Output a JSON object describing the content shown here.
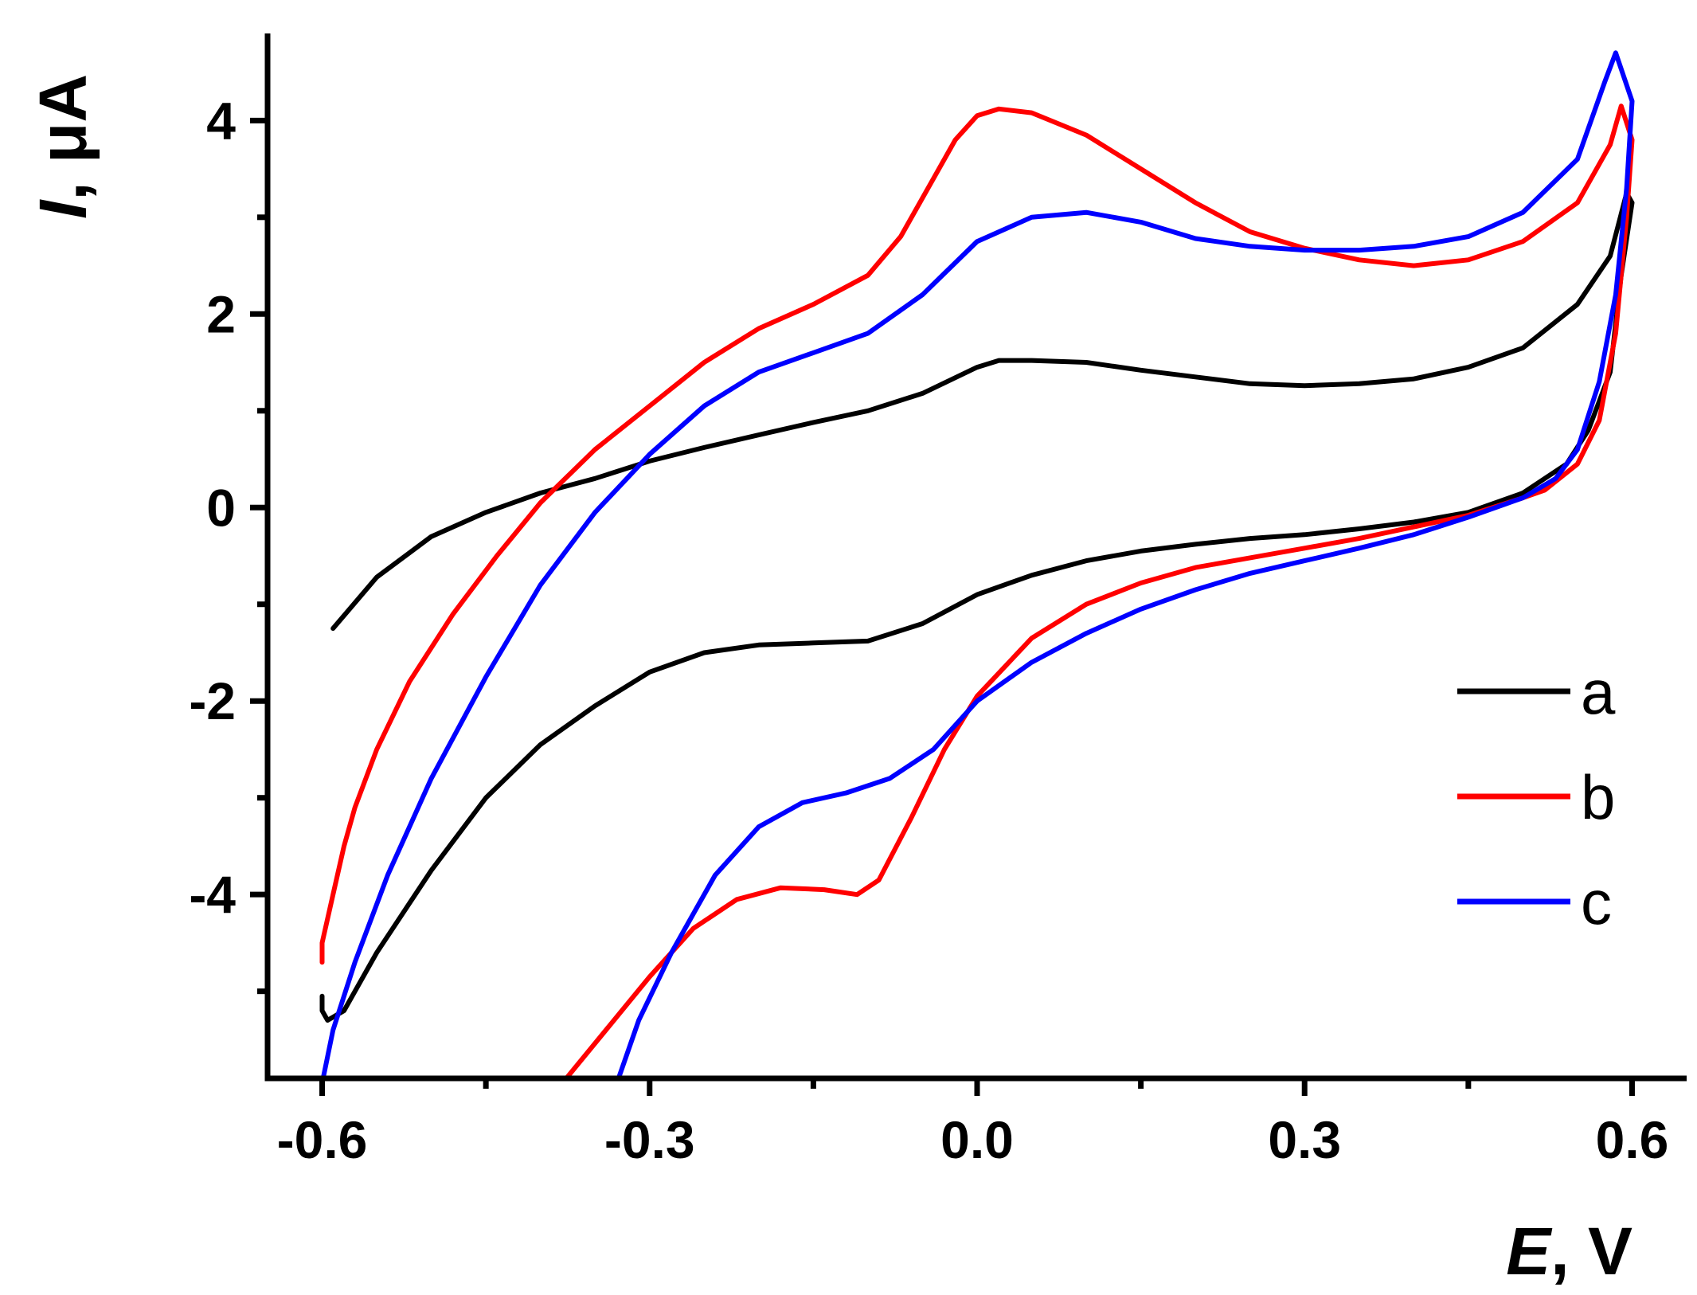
{
  "chart_data": {
    "type": "line",
    "title": "",
    "xlabel": {
      "symbol": "E",
      "unit": ", V"
    },
    "ylabel": {
      "symbol": "I",
      "unit": ", μA"
    },
    "xlim": [
      -0.65,
      0.65
    ],
    "ylim": [
      -5.9,
      4.9
    ],
    "x_ticks": [
      -0.6,
      -0.3,
      0.0,
      0.3,
      0.6
    ],
    "x_tick_labels": [
      "-0.6",
      "-0.3",
      "0.0",
      "0.3",
      "0.6"
    ],
    "x_minor_ticks": [
      -0.45,
      -0.15,
      0.15,
      0.45
    ],
    "y_ticks": [
      -4,
      -2,
      0,
      2,
      4
    ],
    "y_tick_labels": [
      "-4",
      "-2",
      "0",
      "2",
      "4"
    ],
    "y_minor_ticks": [
      -5,
      -3,
      -1,
      1,
      3
    ],
    "grid": false,
    "legend_position": "bottom-right",
    "series": [
      {
        "name": "a",
        "color": "#000000",
        "points": [
          [
            -0.59,
            -1.25
          ],
          [
            -0.55,
            -0.72
          ],
          [
            -0.5,
            -0.3
          ],
          [
            -0.45,
            -0.05
          ],
          [
            -0.4,
            0.15
          ],
          [
            -0.35,
            0.3
          ],
          [
            -0.3,
            0.48
          ],
          [
            -0.25,
            0.62
          ],
          [
            -0.2,
            0.75
          ],
          [
            -0.15,
            0.88
          ],
          [
            -0.1,
            1.0
          ],
          [
            -0.05,
            1.18
          ],
          [
            0.0,
            1.45
          ],
          [
            0.02,
            1.52
          ],
          [
            0.05,
            1.52
          ],
          [
            0.1,
            1.5
          ],
          [
            0.15,
            1.42
          ],
          [
            0.2,
            1.35
          ],
          [
            0.25,
            1.28
          ],
          [
            0.3,
            1.26
          ],
          [
            0.35,
            1.28
          ],
          [
            0.4,
            1.33
          ],
          [
            0.45,
            1.45
          ],
          [
            0.5,
            1.65
          ],
          [
            0.55,
            2.1
          ],
          [
            0.58,
            2.6
          ],
          [
            0.595,
            3.25
          ],
          [
            0.6,
            3.15
          ],
          [
            0.59,
            2.4
          ],
          [
            0.58,
            1.4
          ],
          [
            0.56,
            0.8
          ],
          [
            0.54,
            0.45
          ],
          [
            0.5,
            0.15
          ],
          [
            0.45,
            -0.05
          ],
          [
            0.4,
            -0.15
          ],
          [
            0.35,
            -0.22
          ],
          [
            0.3,
            -0.28
          ],
          [
            0.25,
            -0.32
          ],
          [
            0.2,
            -0.38
          ],
          [
            0.15,
            -0.45
          ],
          [
            0.1,
            -0.55
          ],
          [
            0.05,
            -0.7
          ],
          [
            0.0,
            -0.9
          ],
          [
            -0.05,
            -1.2
          ],
          [
            -0.1,
            -1.38
          ],
          [
            -0.15,
            -1.4
          ],
          [
            -0.2,
            -1.42
          ],
          [
            -0.25,
            -1.5
          ],
          [
            -0.3,
            -1.7
          ],
          [
            -0.35,
            -2.05
          ],
          [
            -0.4,
            -2.45
          ],
          [
            -0.45,
            -3.0
          ],
          [
            -0.5,
            -3.75
          ],
          [
            -0.55,
            -4.6
          ],
          [
            -0.58,
            -5.2
          ],
          [
            -0.595,
            -5.3
          ],
          [
            -0.6,
            -5.2
          ],
          [
            -0.6,
            -5.05
          ]
        ]
      },
      {
        "name": "b",
        "color": "#ff0000",
        "points": [
          [
            -0.6,
            -4.7
          ],
          [
            -0.6,
            -4.5
          ],
          [
            -0.59,
            -4.0
          ],
          [
            -0.58,
            -3.5
          ],
          [
            -0.57,
            -3.1
          ],
          [
            -0.55,
            -2.5
          ],
          [
            -0.52,
            -1.8
          ],
          [
            -0.48,
            -1.1
          ],
          [
            -0.44,
            -0.5
          ],
          [
            -0.4,
            0.05
          ],
          [
            -0.35,
            0.6
          ],
          [
            -0.3,
            1.05
          ],
          [
            -0.25,
            1.5
          ],
          [
            -0.2,
            1.85
          ],
          [
            -0.15,
            2.1
          ],
          [
            -0.1,
            2.4
          ],
          [
            -0.07,
            2.8
          ],
          [
            -0.04,
            3.4
          ],
          [
            -0.02,
            3.8
          ],
          [
            0.0,
            4.05
          ],
          [
            0.02,
            4.12
          ],
          [
            0.05,
            4.08
          ],
          [
            0.1,
            3.85
          ],
          [
            0.15,
            3.5
          ],
          [
            0.2,
            3.15
          ],
          [
            0.25,
            2.85
          ],
          [
            0.3,
            2.68
          ],
          [
            0.35,
            2.56
          ],
          [
            0.4,
            2.5
          ],
          [
            0.45,
            2.56
          ],
          [
            0.5,
            2.75
          ],
          [
            0.55,
            3.15
          ],
          [
            0.58,
            3.75
          ],
          [
            0.59,
            4.15
          ],
          [
            0.6,
            3.8
          ],
          [
            0.595,
            3.0
          ],
          [
            0.585,
            1.8
          ],
          [
            0.57,
            0.9
          ],
          [
            0.55,
            0.45
          ],
          [
            0.52,
            0.18
          ],
          [
            0.5,
            0.1
          ],
          [
            0.45,
            -0.08
          ],
          [
            0.4,
            -0.2
          ],
          [
            0.35,
            -0.32
          ],
          [
            0.3,
            -0.42
          ],
          [
            0.25,
            -0.52
          ],
          [
            0.2,
            -0.62
          ],
          [
            0.15,
            -0.78
          ],
          [
            0.1,
            -1.0
          ],
          [
            0.05,
            -1.35
          ],
          [
            0.0,
            -1.95
          ],
          [
            -0.03,
            -2.5
          ],
          [
            -0.06,
            -3.2
          ],
          [
            -0.09,
            -3.85
          ],
          [
            -0.11,
            -4.0
          ],
          [
            -0.14,
            -3.95
          ],
          [
            -0.18,
            -3.93
          ],
          [
            -0.22,
            -4.05
          ],
          [
            -0.26,
            -4.35
          ],
          [
            -0.3,
            -4.85
          ],
          [
            -0.34,
            -5.4
          ],
          [
            -0.38,
            -5.95
          ]
        ]
      },
      {
        "name": "c",
        "color": "#0000ff",
        "points": [
          [
            -0.6,
            -5.95
          ],
          [
            -0.59,
            -5.4
          ],
          [
            -0.57,
            -4.7
          ],
          [
            -0.54,
            -3.8
          ],
          [
            -0.5,
            -2.8
          ],
          [
            -0.45,
            -1.75
          ],
          [
            -0.4,
            -0.8
          ],
          [
            -0.35,
            -0.05
          ],
          [
            -0.3,
            0.55
          ],
          [
            -0.25,
            1.05
          ],
          [
            -0.2,
            1.4
          ],
          [
            -0.15,
            1.6
          ],
          [
            -0.1,
            1.8
          ],
          [
            -0.05,
            2.2
          ],
          [
            0.0,
            2.75
          ],
          [
            0.05,
            3.0
          ],
          [
            0.1,
            3.05
          ],
          [
            0.15,
            2.95
          ],
          [
            0.2,
            2.78
          ],
          [
            0.25,
            2.7
          ],
          [
            0.3,
            2.66
          ],
          [
            0.35,
            2.66
          ],
          [
            0.4,
            2.7
          ],
          [
            0.45,
            2.8
          ],
          [
            0.5,
            3.05
          ],
          [
            0.55,
            3.6
          ],
          [
            0.575,
            4.4
          ],
          [
            0.585,
            4.7
          ],
          [
            0.6,
            4.2
          ],
          [
            0.595,
            3.3
          ],
          [
            0.585,
            2.2
          ],
          [
            0.57,
            1.3
          ],
          [
            0.55,
            0.6
          ],
          [
            0.53,
            0.3
          ],
          [
            0.5,
            0.1
          ],
          [
            0.45,
            -0.1
          ],
          [
            0.4,
            -0.28
          ],
          [
            0.35,
            -0.42
          ],
          [
            0.3,
            -0.55
          ],
          [
            0.25,
            -0.68
          ],
          [
            0.2,
            -0.85
          ],
          [
            0.15,
            -1.05
          ],
          [
            0.1,
            -1.3
          ],
          [
            0.05,
            -1.6
          ],
          [
            0.0,
            -2.0
          ],
          [
            -0.04,
            -2.5
          ],
          [
            -0.08,
            -2.8
          ],
          [
            -0.12,
            -2.95
          ],
          [
            -0.16,
            -3.05
          ],
          [
            -0.2,
            -3.3
          ],
          [
            -0.24,
            -3.8
          ],
          [
            -0.28,
            -4.6
          ],
          [
            -0.31,
            -5.3
          ],
          [
            -0.33,
            -5.95
          ]
        ]
      }
    ]
  }
}
